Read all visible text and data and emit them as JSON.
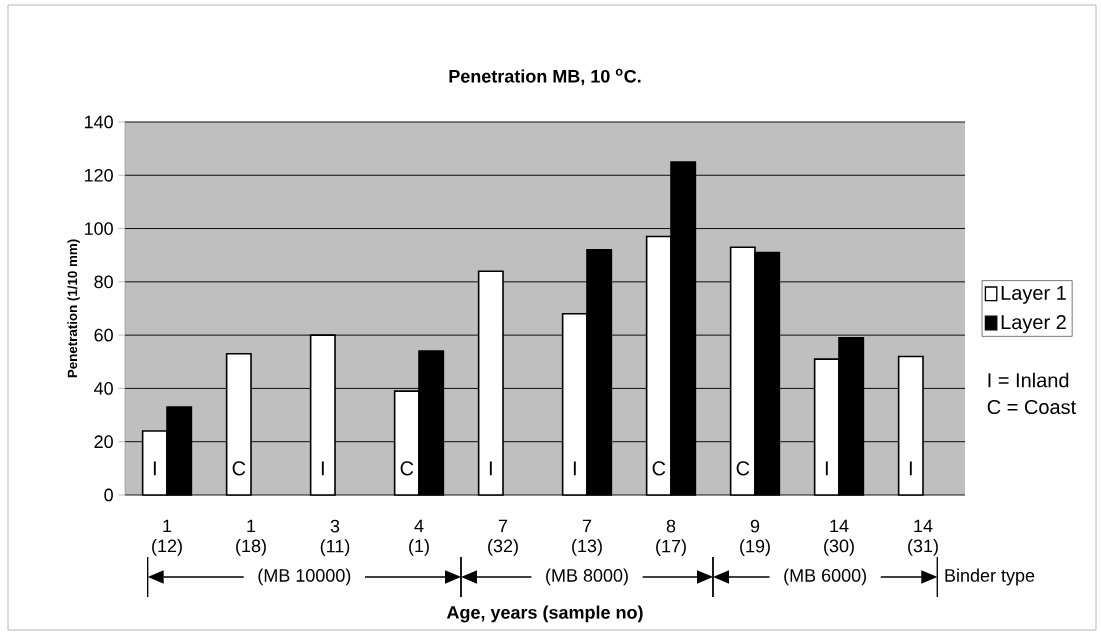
{
  "chart_data": {
    "type": "bar",
    "title": "Penetration MB, 10 $^{o}$C.",
    "xlabel": "Age, years (sample no)",
    "ylabel": "Penetration (1/10 mm)",
    "categories": [
      "1 (12)",
      "1 (18)",
      "3 (11)",
      "4 (1)",
      "7 (32)",
      "7 (13)",
      "8 (17)",
      "9 (19)",
      "14 (30)",
      "14 (31)"
    ],
    "series": [
      {
        "name": "Layer 1",
        "color": "#ffffff",
        "values": [
          24,
          53,
          60,
          39,
          84,
          68,
          97,
          93,
          51,
          52
        ]
      },
      {
        "name": "Layer 2",
        "color": "#000000",
        "values": [
          33,
          null,
          null,
          54,
          null,
          92,
          125,
          91,
          59,
          null
        ]
      }
    ],
    "ylim": [
      0,
      140
    ],
    "yticks": [
      0,
      20,
      40,
      60,
      80,
      100,
      120,
      140
    ],
    "grid": "y",
    "legend": "right",
    "annotations": [
      {
        "text": "I",
        "x": "1 (12)",
        "y": 10
      },
      {
        "text": "C",
        "x": "1 (18)",
        "y": 10
      },
      {
        "text": "I",
        "x": "3 (11)",
        "y": 10
      },
      {
        "text": "C",
        "x": "4 (1)",
        "y": 10
      },
      {
        "text": "I",
        "x": "7 (32)",
        "y": 10
      },
      {
        "text": "I",
        "x": "7 (13)",
        "y": 10
      },
      {
        "text": "C",
        "x": "8 (17)",
        "y": 10
      },
      {
        "text": "C",
        "x": "9 (19)",
        "y": 10
      },
      {
        "text": "I",
        "x": "14 (30)",
        "y": 10
      },
      {
        "text": "I",
        "x": "14 (31)",
        "y": 10
      },
      "I  = Inland",
      "C = Coast",
      "(MB 10000)",
      "(MB 8000)",
      "(MB 6000)",
      "Binder type"
    ]
  }
}
